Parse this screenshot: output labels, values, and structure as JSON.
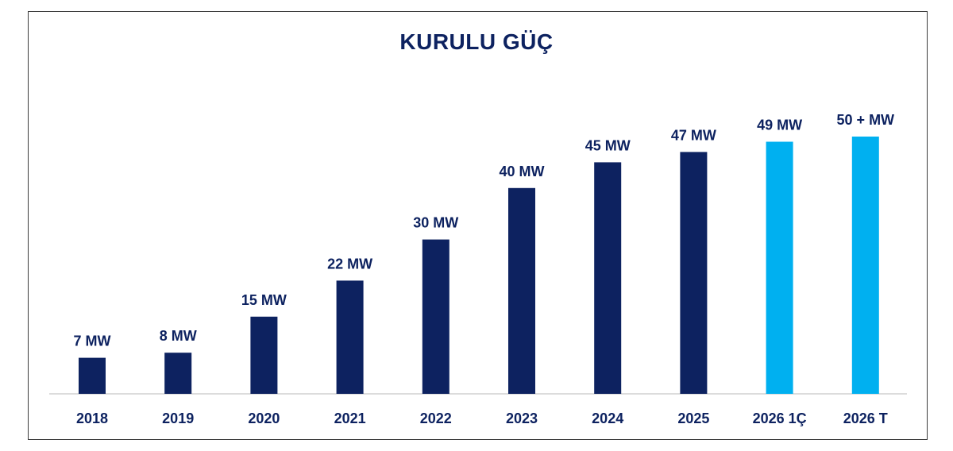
{
  "chart_data": {
    "type": "bar",
    "title": "KURULU GÜÇ",
    "xlabel": "",
    "ylabel": "",
    "unit": "MW",
    "categories": [
      "2018",
      "2019",
      "2020",
      "2021",
      "2022",
      "2023",
      "2024",
      "2025",
      "2026 1Ç",
      "2026 T"
    ],
    "values": [
      7,
      8,
      15,
      22,
      30,
      40,
      45,
      47,
      49,
      50
    ],
    "data_labels": [
      "7 MW",
      "8 MW",
      "15 MW",
      "22 MW",
      "30 MW",
      "40 MW",
      "45 MW",
      "47 MW",
      "49 MW",
      "50 + MW"
    ],
    "bar_colors": [
      "#0d2260",
      "#0d2260",
      "#0d2260",
      "#0d2260",
      "#0d2260",
      "#0d2260",
      "#0d2260",
      "#0d2260",
      "#00b0f0",
      "#00b0f0"
    ],
    "ylim": [
      0,
      50
    ],
    "grid": false,
    "legend": "none"
  }
}
